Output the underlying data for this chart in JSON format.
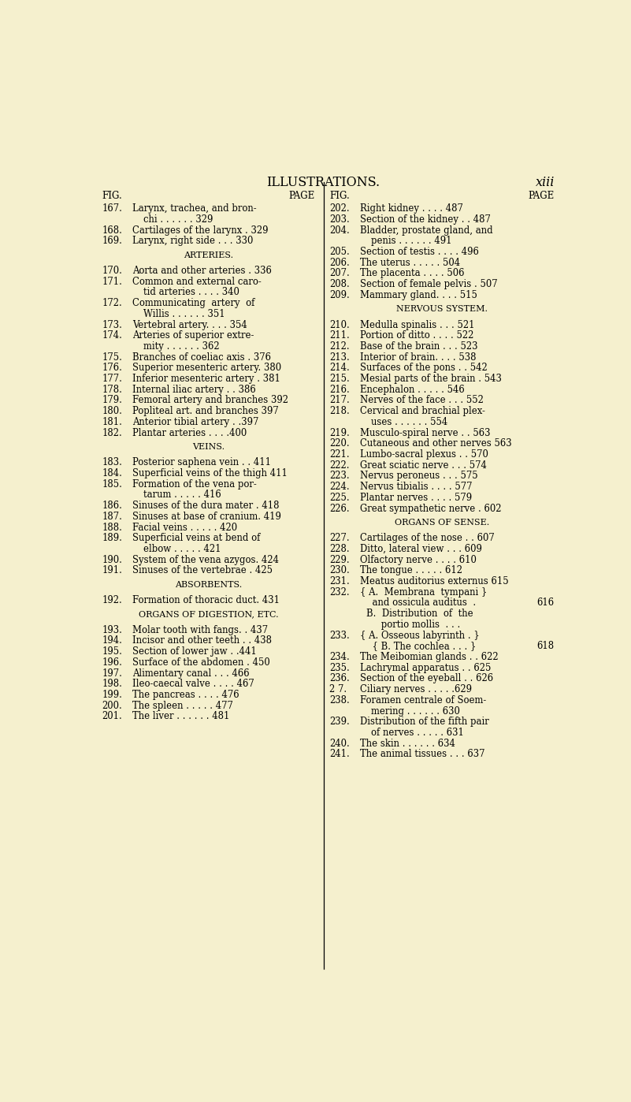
{
  "bg_color": "#f5f0ce",
  "title": "ILLUSTRATIONS.",
  "title_right": "xiii",
  "left_items": [
    {
      "type": "header"
    },
    {
      "type": "entry",
      "fig": "167.",
      "line1": "Larynx, trachea, and bron-",
      "line2": "chi . . . . . . 329",
      "page": "329"
    },
    {
      "type": "entry",
      "fig": "168.",
      "line1": "Cartilages of the larynx . 329",
      "page": "329"
    },
    {
      "type": "entry",
      "fig": "169.",
      "line1": "Larynx, right side . . . 330",
      "page": "330"
    },
    {
      "type": "heading",
      "text": "ARTERIES."
    },
    {
      "type": "entry",
      "fig": "170.",
      "line1": "Aorta and other arteries . 336",
      "page": "336"
    },
    {
      "type": "entry",
      "fig": "171.",
      "line1": "Common and external caro-",
      "line2": "tid arteries . . . . 340",
      "page": "340"
    },
    {
      "type": "entry",
      "fig": "172.",
      "line1": "Communicating  artery  of",
      "line2": "Willis . . . . . . 351",
      "page": "351"
    },
    {
      "type": "entry",
      "fig": "173.",
      "line1": "Vertebral artery. . . . 354",
      "page": "354"
    },
    {
      "type": "entry",
      "fig": "174.",
      "line1": "Arteries of superior extre-",
      "line2": "mity . . . . . . 362",
      "page": "362"
    },
    {
      "type": "entry",
      "fig": "175.",
      "line1": "Branches of coeliac axis . 376",
      "page": "376"
    },
    {
      "type": "entry",
      "fig": "176.",
      "line1": "Superior mesenteric artery. 380",
      "page": "380"
    },
    {
      "type": "entry",
      "fig": "177.",
      "line1": "Inferior mesenteric artery . 381",
      "page": "381"
    },
    {
      "type": "entry",
      "fig": "178.",
      "line1": "Internal iliac artery . . 386",
      "page": "386"
    },
    {
      "type": "entry",
      "fig": "179.",
      "line1": "Femoral artery and branches 392",
      "page": "392"
    },
    {
      "type": "entry",
      "fig": "180.",
      "line1": "Popliteal art. and branches 397",
      "page": "397"
    },
    {
      "type": "entry",
      "fig": "181.",
      "line1": "Anterior tibial artery . .397",
      "page": "397"
    },
    {
      "type": "entry",
      "fig": "182.",
      "line1": "Plantar arteries . . . .400",
      "page": "400"
    },
    {
      "type": "heading",
      "text": "VEINS."
    },
    {
      "type": "entry",
      "fig": "183.",
      "line1": "Posterior saphena vein . . 411",
      "page": "411"
    },
    {
      "type": "entry",
      "fig": "184.",
      "line1": "Superficial veins of the thigh 411",
      "page": "411"
    },
    {
      "type": "entry",
      "fig": "185.",
      "line1": "Formation of the vena por-",
      "line2": "tarum . . . . . 416",
      "page": "416"
    },
    {
      "type": "entry",
      "fig": "186.",
      "line1": "Sinuses of the dura mater . 418",
      "page": "418"
    },
    {
      "type": "entry",
      "fig": "187.",
      "line1": "Sinuses at base of cranium. 419",
      "page": "419"
    },
    {
      "type": "entry",
      "fig": "188.",
      "line1": "Facial veins . . . . . 420",
      "page": "420"
    },
    {
      "type": "entry",
      "fig": "189.",
      "line1": "Superficial veins at bend of",
      "line2": "elbow . . . . . 421",
      "page": "421"
    },
    {
      "type": "entry",
      "fig": "190.",
      "line1": "System of the vena azygos. 424",
      "page": "424"
    },
    {
      "type": "entry",
      "fig": "191.",
      "line1": "Sinuses of the vertebrae . 425",
      "page": "425"
    },
    {
      "type": "heading",
      "text": "ABSORBENTS."
    },
    {
      "type": "entry",
      "fig": "192.",
      "line1": "Formation of thoracic duct. 431",
      "page": "431"
    },
    {
      "type": "heading",
      "text": "ORGANS OF DIGESTION, ETC."
    },
    {
      "type": "entry",
      "fig": "193.",
      "line1": "Molar tooth with fangs. . 437",
      "page": "437"
    },
    {
      "type": "entry",
      "fig": "194.",
      "line1": "Incisor and other teeth . . 438",
      "page": "438"
    },
    {
      "type": "entry",
      "fig": "195.",
      "line1": "Section of lower jaw . .441",
      "page": "441"
    },
    {
      "type": "entry",
      "fig": "196.",
      "line1": "Surface of the abdomen . 450",
      "page": "450"
    },
    {
      "type": "entry",
      "fig": "197.",
      "line1": "Alimentary canal . . . 466",
      "page": "466"
    },
    {
      "type": "entry",
      "fig": "198.",
      "line1": "Ileo-caecal valve . . . . 467",
      "page": "467"
    },
    {
      "type": "entry",
      "fig": "199.",
      "line1": "The pancreas . . . . 476",
      "page": "476"
    },
    {
      "type": "entry",
      "fig": "200.",
      "line1": "The spleen . . . . . 477",
      "page": "477"
    },
    {
      "type": "entry",
      "fig": "201.",
      "line1": "The liver . . . . . . 481",
      "page": "481"
    }
  ],
  "right_items": [
    {
      "type": "header"
    },
    {
      "type": "entry",
      "fig": "202.",
      "line1": "Right kidney . . . . 487",
      "page": "487"
    },
    {
      "type": "entry",
      "fig": "203.",
      "line1": "Section of the kidney . . 487",
      "page": "487"
    },
    {
      "type": "entry",
      "fig": "204.",
      "line1": "Bladder, prostate gland, and",
      "line2": "penis . . . . . . 491",
      "page": "491"
    },
    {
      "type": "entry",
      "fig": "205.",
      "line1": "Section of testis . . . . 496",
      "page": "496"
    },
    {
      "type": "entry",
      "fig": "206.",
      "line1": "The uterus . . . . . 504",
      "page": "504"
    },
    {
      "type": "entry",
      "fig": "207.",
      "line1": "The placenta . . . . 506",
      "page": "506"
    },
    {
      "type": "entry",
      "fig": "208.",
      "line1": "Section of female pelvis . 507",
      "page": "507"
    },
    {
      "type": "entry",
      "fig": "209.",
      "line1": "Mammary gland. . . . 515",
      "page": "515"
    },
    {
      "type": "heading",
      "text": "NERVOUS SYSTEM."
    },
    {
      "type": "entry",
      "fig": "210.",
      "line1": "Medulla spinalis . . . 521",
      "page": "521"
    },
    {
      "type": "entry",
      "fig": "211.",
      "line1": "Portion of ditto . . . . 522",
      "page": "522"
    },
    {
      "type": "entry",
      "fig": "212.",
      "line1": "Base of the brain . . . 523",
      "page": "523"
    },
    {
      "type": "entry",
      "fig": "213.",
      "line1": "Interior of brain. . . . 538",
      "page": "538"
    },
    {
      "type": "entry",
      "fig": "214.",
      "line1": "Surfaces of the pons . . 542",
      "page": "542"
    },
    {
      "type": "entry",
      "fig": "215.",
      "line1": "Mesial parts of the brain . 543",
      "page": "543"
    },
    {
      "type": "entry",
      "fig": "216.",
      "line1": "Encephalon . . . . . 546",
      "page": "546"
    },
    {
      "type": "entry",
      "fig": "217.",
      "line1": "Nerves of the face . . . 552",
      "page": "552"
    },
    {
      "type": "entry",
      "fig": "218.",
      "line1": "Cervical and brachial plex-",
      "line2": "uses . . . . . . 554",
      "page": "554"
    },
    {
      "type": "entry",
      "fig": "219.",
      "line1": "Musculo-spiral nerve . . 563",
      "page": "563"
    },
    {
      "type": "entry",
      "fig": "220.",
      "line1": "Cutaneous and other nerves 563",
      "page": "563"
    },
    {
      "type": "entry",
      "fig": "221.",
      "line1": "Lumbo-sacral plexus . . 570",
      "page": "570"
    },
    {
      "type": "entry",
      "fig": "222.",
      "line1": "Great sciatic nerve . . . 574",
      "page": "574"
    },
    {
      "type": "entry",
      "fig": "223.",
      "line1": "Nervus peroneus . . . 575",
      "page": "575"
    },
    {
      "type": "entry",
      "fig": "224.",
      "line1": "Nervus tibialis . . . . 577",
      "page": "577"
    },
    {
      "type": "entry",
      "fig": "225.",
      "line1": "Plantar nerves . . . . 579",
      "page": "579"
    },
    {
      "type": "entry",
      "fig": "226.",
      "line1": "Great sympathetic nerve . 602",
      "page": "602"
    },
    {
      "type": "heading",
      "text": "ORGANS OF SENSE."
    },
    {
      "type": "entry",
      "fig": "227.",
      "line1": "Cartilages of the nose . . 607",
      "page": "607"
    },
    {
      "type": "entry",
      "fig": "228.",
      "line1": "Ditto, lateral view . . . 609",
      "page": "609"
    },
    {
      "type": "entry",
      "fig": "229.",
      "line1": "Olfactory nerve . . . . 610",
      "page": "610"
    },
    {
      "type": "entry",
      "fig": "230.",
      "line1": "The tongue . . . . . 612",
      "page": "612"
    },
    {
      "type": "entry",
      "fig": "231.",
      "line1": "Meatus auditorius externus 615",
      "page": "615"
    },
    {
      "type": "entry232",
      "fig": "232.",
      "line1": "{ A.  Membrana  tympani }",
      "line2": "  and ossicula auditus  .",
      "line3": "B.  Distribution  of  the",
      "line4": "     portio mollis  . . .",
      "page": "616"
    },
    {
      "type": "entry233",
      "fig": "233.",
      "line1": "{ A. Osseous labyrinth . }",
      "line2": "  { B. The cochlea . . . }",
      "page": "618"
    },
    {
      "type": "entry",
      "fig": "234.",
      "line1": "The Meibomian glands . . 622",
      "page": "622"
    },
    {
      "type": "entry",
      "fig": "235.",
      "line1": "Lachrymal apparatus . . 625",
      "page": "625"
    },
    {
      "type": "entry",
      "fig": "236.",
      "line1": "Section of the eyeball . . 626",
      "page": "626"
    },
    {
      "type": "entry",
      "fig": "2 7.",
      "line1": "Ciliary nerves . . . . .629",
      "page": "629"
    },
    {
      "type": "entry",
      "fig": "238.",
      "line1": "Foramen centrale of Soem-",
      "line2": "mering . . . . . . 630",
      "page": "630"
    },
    {
      "type": "entry",
      "fig": "239.",
      "line1": "Distribution of the fifth pair",
      "line2": "of nerves . . . . . 631",
      "page": "631"
    },
    {
      "type": "entry",
      "fig": "240.",
      "line1": "The skin . . . . . . 634",
      "page": "634"
    },
    {
      "type": "entry",
      "fig": "241.",
      "line1": "The animal tissues . . . 637",
      "page": "637"
    }
  ]
}
